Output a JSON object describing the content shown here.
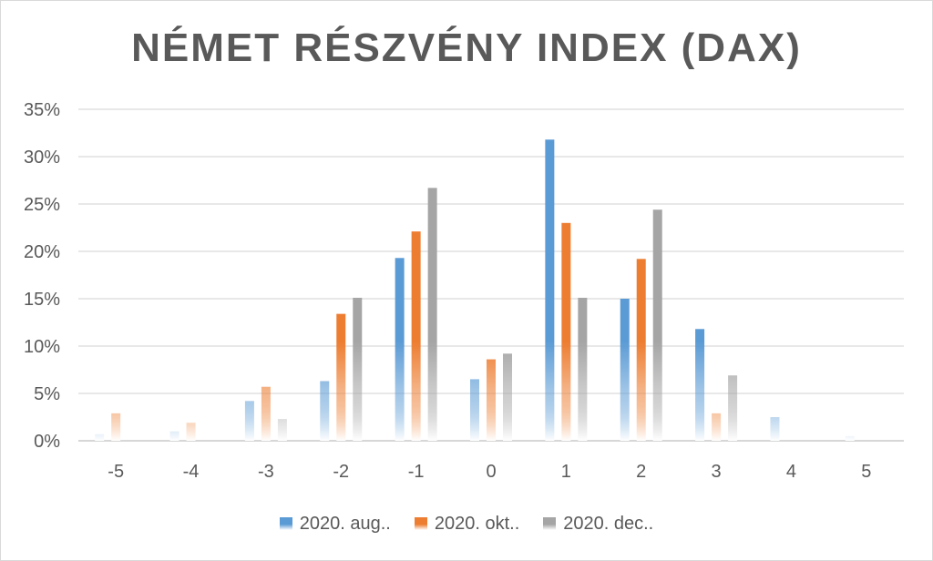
{
  "chart_data": {
    "type": "bar",
    "title": "NÉMET RÉSZVÉNY INDEX (DAX)",
    "xlabel": "",
    "ylabel": "",
    "categories": [
      "-5",
      "-4",
      "-3",
      "-2",
      "-1",
      "0",
      "1",
      "2",
      "3",
      "4",
      "5"
    ],
    "ylim": [
      0,
      35
    ],
    "yticks": [
      "0%",
      "5%",
      "10%",
      "15%",
      "20%",
      "25%",
      "30%",
      "35%"
    ],
    "grid": true,
    "legend_position": "bottom",
    "series": [
      {
        "name": "2020. aug..",
        "color": "#5b9bd5",
        "values": [
          0.7,
          1.0,
          4.2,
          6.3,
          19.3,
          6.5,
          31.8,
          15.0,
          11.8,
          2.5,
          0.5
        ]
      },
      {
        "name": "2020. okt..",
        "color": "#ed7d31",
        "values": [
          2.9,
          1.9,
          5.7,
          13.4,
          22.1,
          8.6,
          23.0,
          19.2,
          2.9,
          0,
          0
        ]
      },
      {
        "name": "2020. dec..",
        "color": "#a5a5a5",
        "values": [
          0,
          0,
          2.3,
          15.1,
          26.7,
          9.2,
          15.1,
          24.4,
          6.9,
          0,
          0
        ]
      }
    ]
  }
}
